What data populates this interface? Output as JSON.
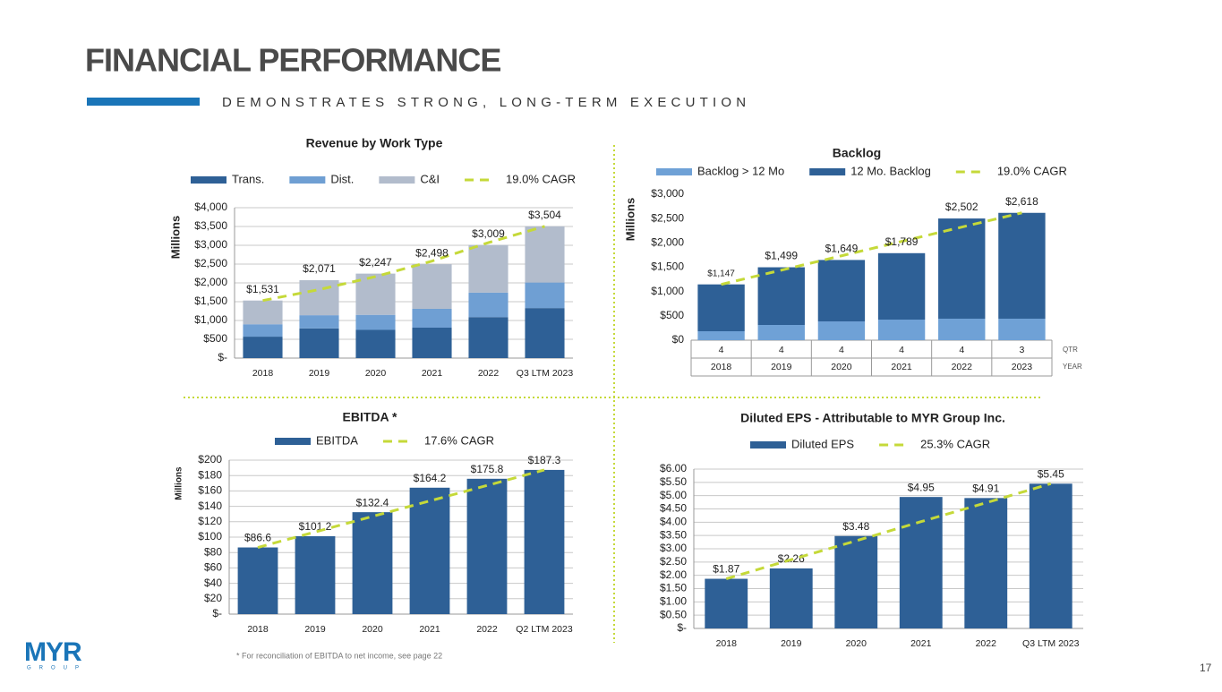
{
  "header": {
    "title": "FINANCIAL PERFORMANCE",
    "subtitle": "DEMONSTRATES STRONG, LONG-TERM EXECUTION"
  },
  "footnote": "* For reconciliation of EBITDA to net income, see page 22",
  "page_number": "17",
  "logo": {
    "name": "MYR",
    "tagline": "GROUP"
  },
  "chart_data": [
    {
      "type": "bar",
      "stacked": true,
      "title": "Revenue by Work Type",
      "y_label": "Millions",
      "categories": [
        "2018",
        "2019",
        "2020",
        "2021",
        "2022",
        "Q3 LTM 2023"
      ],
      "series": [
        {
          "name": "Trans.",
          "color": "#2e6096",
          "values": [
            570,
            790,
            750,
            810,
            1090,
            1330
          ]
        },
        {
          "name": "Dist.",
          "color": "#6f9fd3",
          "values": [
            330,
            350,
            400,
            500,
            650,
            680
          ]
        },
        {
          "name": "C&I",
          "color": "#b2bccc",
          "values": [
            631,
            931,
            1097,
            1188,
            1269,
            1494
          ]
        },
        {
          "name": "19.0% CAGR",
          "type": "line",
          "dashed": true,
          "color": "#c5d939",
          "values": [
            1531,
            1822,
            2168,
            2580,
            3071,
            3504
          ]
        }
      ],
      "totals": [
        1531,
        2071,
        2247,
        2498,
        3009,
        3504
      ],
      "total_labels": [
        "$1,531",
        "$2,071",
        "$2,247",
        "$2,498",
        "$3,009",
        "$3,504"
      ],
      "ylim": [
        0,
        4000
      ],
      "yticks": [
        {
          "value": 0,
          "label": "$-"
        },
        {
          "value": 500,
          "label": "$500"
        },
        {
          "value": 1000,
          "label": "$1,000"
        },
        {
          "value": 1500,
          "label": "$1,500"
        },
        {
          "value": 2000,
          "label": "$2,000"
        },
        {
          "value": 2500,
          "label": "$2,500"
        },
        {
          "value": 3000,
          "label": "$3,000"
        },
        {
          "value": 3500,
          "label": "$3,500"
        },
        {
          "value": 4000,
          "label": "$4,000"
        }
      ],
      "grid": true
    },
    {
      "type": "bar",
      "stacked": true,
      "title": "Backlog",
      "y_label": "Millions",
      "categories": [
        "2018",
        "2019",
        "2020",
        "2021",
        "2022",
        "2023"
      ],
      "categories_label": "YEAR",
      "quarters": [
        4,
        4,
        4,
        4,
        4,
        3
      ],
      "quarters_label": "QTR",
      "series": [
        {
          "name": "Backlog > 12 Mo",
          "color": "#6fa1d6",
          "values": [
            184,
            313,
            386,
            423,
            442,
            442
          ]
        },
        {
          "name": "12 Mo. Backlog",
          "color": "#2e6096",
          "values": [
            963,
            1186,
            1263,
            1366,
            2060,
            2176
          ]
        },
        {
          "name": "19.0% CAGR",
          "type": "line",
          "dashed": true,
          "color": "#c5d939",
          "values": [
            1147,
            1440,
            1735,
            2030,
            2325,
            2618
          ]
        }
      ],
      "totals": [
        1147,
        1499,
        1649,
        1789,
        2502,
        2618
      ],
      "total_labels": [
        "$1,147",
        "$1,499",
        "$1,649",
        "$1,789",
        "$2,502",
        "$2,618"
      ],
      "ylim": [
        0,
        3000
      ],
      "yticks": [
        {
          "value": 0,
          "label": "$0"
        },
        {
          "value": 500,
          "label": "$500"
        },
        {
          "value": 1000,
          "label": "$1,000"
        },
        {
          "value": 1500,
          "label": "$1,500"
        },
        {
          "value": 2000,
          "label": "$2,000"
        },
        {
          "value": 2500,
          "label": "$2,500"
        },
        {
          "value": 3000,
          "label": "$3,000"
        }
      ],
      "grid": false
    },
    {
      "type": "bar",
      "title": "EBITDA *",
      "y_label": "Millions",
      "categories": [
        "2018",
        "2019",
        "2020",
        "2021",
        "2022",
        "Q2 LTM 2023"
      ],
      "series": [
        {
          "name": "EBITDA",
          "color": "#2e6096",
          "values": [
            86.6,
            101.2,
            132.4,
            164.2,
            175.8,
            187.3
          ],
          "value_labels": [
            "$86.6",
            "$101.2",
            "$132.4",
            "$164.2",
            "$175.8",
            "$187.3"
          ]
        },
        {
          "name": "17.6% CAGR",
          "type": "line",
          "dashed": true,
          "color": "#c5d939",
          "values": [
            86.6,
            106.7,
            126.9,
            147.0,
            167.1,
            187.3
          ]
        }
      ],
      "ylim": [
        0,
        200
      ],
      "yticks": [
        {
          "value": 0,
          "label": "$-"
        },
        {
          "value": 20,
          "label": "$20"
        },
        {
          "value": 40,
          "label": "$40"
        },
        {
          "value": 60,
          "label": "$60"
        },
        {
          "value": 80,
          "label": "$80"
        },
        {
          "value": 100,
          "label": "$100"
        },
        {
          "value": 120,
          "label": "$120"
        },
        {
          "value": 140,
          "label": "$140"
        },
        {
          "value": 160,
          "label": "$160"
        },
        {
          "value": 180,
          "label": "$180"
        },
        {
          "value": 200,
          "label": "$200"
        }
      ],
      "grid": true
    },
    {
      "type": "bar",
      "title": "Diluted EPS - Attributable to MYR Group Inc.",
      "categories": [
        "2018",
        "2019",
        "2020",
        "2021",
        "2022",
        "Q3 LTM 2023"
      ],
      "series": [
        {
          "name": "Diluted EPS",
          "color": "#2e6096",
          "values": [
            1.87,
            2.26,
            3.48,
            4.95,
            4.91,
            5.45
          ],
          "value_labels": [
            "$1.87",
            "$2.26",
            "$3.48",
            "$4.95",
            "$4.91",
            "$5.45"
          ]
        },
        {
          "name": "25.3% CAGR",
          "type": "line",
          "dashed": true,
          "color": "#c5d939",
          "values": [
            1.87,
            2.59,
            3.3,
            4.02,
            4.73,
            5.45
          ]
        }
      ],
      "ylim": [
        0,
        6
      ],
      "yticks": [
        {
          "value": 0,
          "label": "$-"
        },
        {
          "value": 0.5,
          "label": "$0.50"
        },
        {
          "value": 1,
          "label": "$1.00"
        },
        {
          "value": 1.5,
          "label": "$1.50"
        },
        {
          "value": 2,
          "label": "$2.00"
        },
        {
          "value": 2.5,
          "label": "$2.50"
        },
        {
          "value": 3,
          "label": "$3.00"
        },
        {
          "value": 3.5,
          "label": "$3.50"
        },
        {
          "value": 4,
          "label": "$4.00"
        },
        {
          "value": 4.5,
          "label": "$4.50"
        },
        {
          "value": 5,
          "label": "$5.00"
        },
        {
          "value": 5.5,
          "label": "$5.50"
        },
        {
          "value": 6,
          "label": "$6.00"
        }
      ],
      "grid": true
    }
  ]
}
